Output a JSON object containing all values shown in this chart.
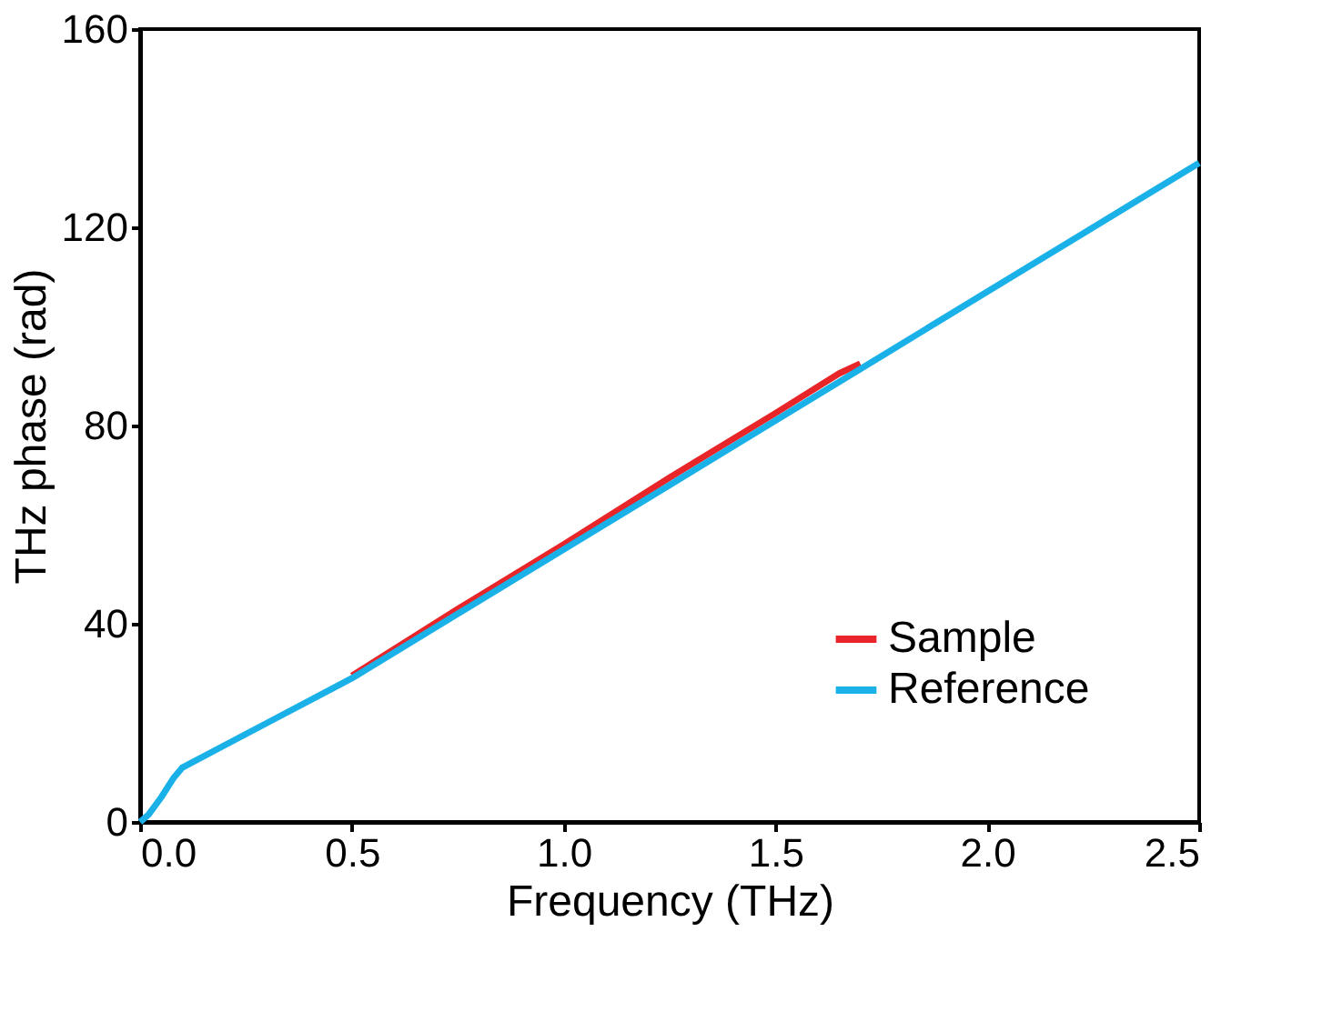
{
  "chart_data": {
    "type": "line",
    "xlabel": "Frequency (THz)",
    "ylabel": "THz phase (rad)",
    "xlim": [
      0,
      2.5
    ],
    "ylim": [
      0,
      160
    ],
    "xticks": [
      {
        "value": 0,
        "label": "0.0"
      },
      {
        "value": 0.5,
        "label": "0.5"
      },
      {
        "value": 1,
        "label": "1.0"
      },
      {
        "value": 1.5,
        "label": "1.5"
      },
      {
        "value": 2,
        "label": "2.0"
      },
      {
        "value": 2.5,
        "label": "2.5"
      }
    ],
    "yticks": [
      0,
      40,
      80,
      120,
      160
    ],
    "grid": false,
    "legend": "bottom right",
    "line_style": "solid",
    "marker": "none",
    "series": [
      {
        "name": "Sample",
        "color": "#e8262a",
        "x": [
          0.5,
          0.75,
          1.0,
          1.25,
          1.5,
          1.65,
          1.7
        ],
        "values": [
          29.5,
          43,
          56,
          69.5,
          82.5,
          90.5,
          92.5
        ]
      },
      {
        "name": "Reference",
        "color": "#1ab0e8",
        "x": [
          0,
          0.02,
          0.05,
          0.08,
          0.1,
          0.2,
          0.3,
          0.5,
          0.75,
          1.0,
          1.25,
          1.5,
          1.75,
          2.0,
          2.25,
          2.5
        ],
        "values": [
          0,
          1.5,
          5,
          9,
          11,
          15.5,
          20,
          29,
          42,
          55,
          68,
          81,
          94,
          107,
          120,
          133
        ]
      }
    ]
  }
}
